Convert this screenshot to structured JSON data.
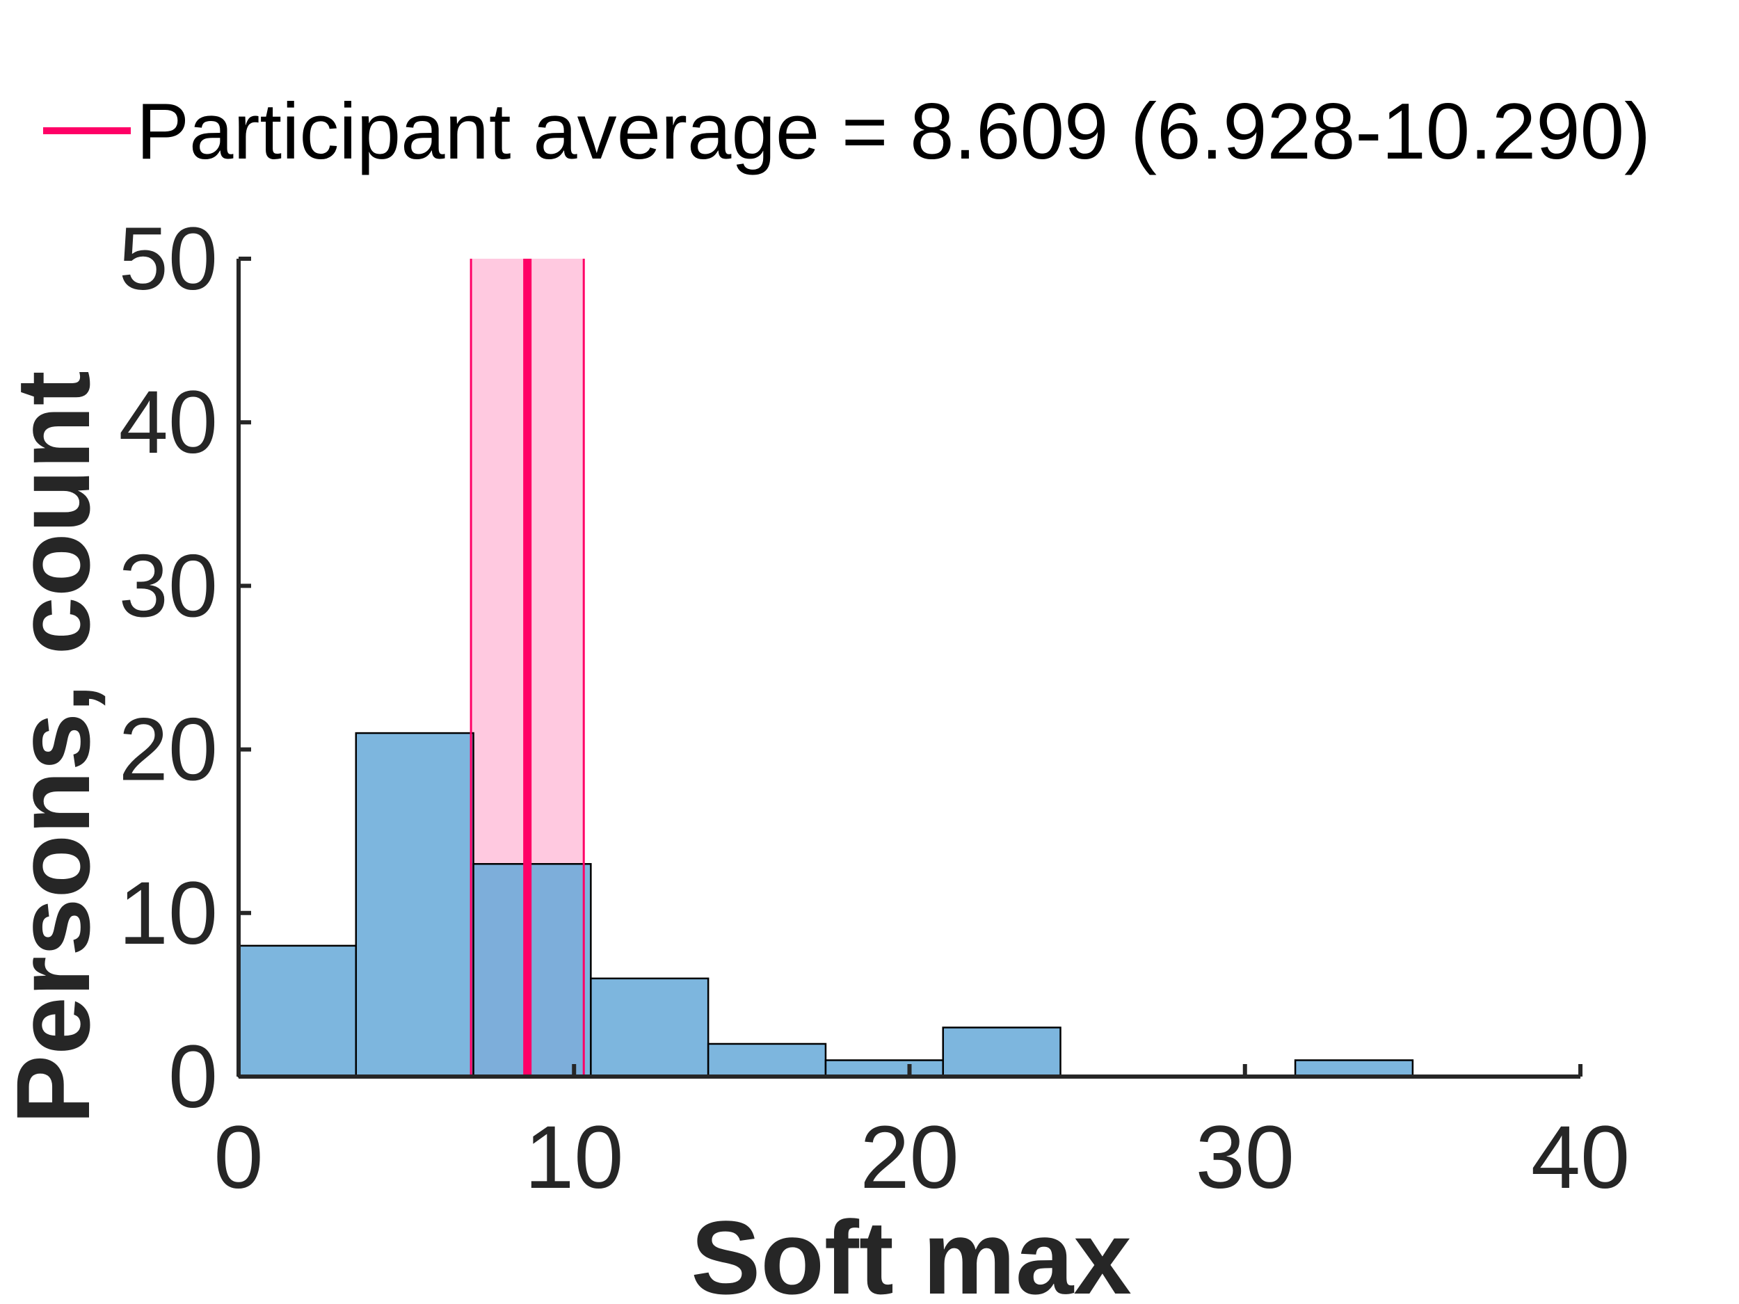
{
  "chart_data": {
    "type": "bar",
    "bin_edges": [
      0,
      3.5,
      7,
      10.5,
      14,
      17.5,
      21,
      24.5,
      28,
      31.5,
      35
    ],
    "values": [
      8,
      21,
      13,
      6,
      2,
      1,
      3,
      0,
      0,
      1
    ],
    "xlabel": "Soft max",
    "ylabel": "Persons, count",
    "xlim": [
      0,
      40
    ],
    "ylim": [
      0,
      50
    ],
    "xticks": [
      0,
      10,
      20,
      30,
      40
    ],
    "yticks": [
      0,
      10,
      20,
      30,
      40,
      50
    ],
    "xtick_labels": [
      "0",
      "10",
      "20",
      "30",
      "40"
    ],
    "ytick_labels": [
      "0",
      "10",
      "20",
      "30",
      "40",
      "50"
    ],
    "bar_color": "#66a9d8",
    "mean": {
      "value": 8.609,
      "ci_low": 6.928,
      "ci_high": 10.29,
      "color": "#ff0066",
      "band_color": "#ffc9e0"
    },
    "legend": {
      "label": "Participant average = 8.609 (6.928-10.290)",
      "placement": "top"
    },
    "grid": false
  }
}
